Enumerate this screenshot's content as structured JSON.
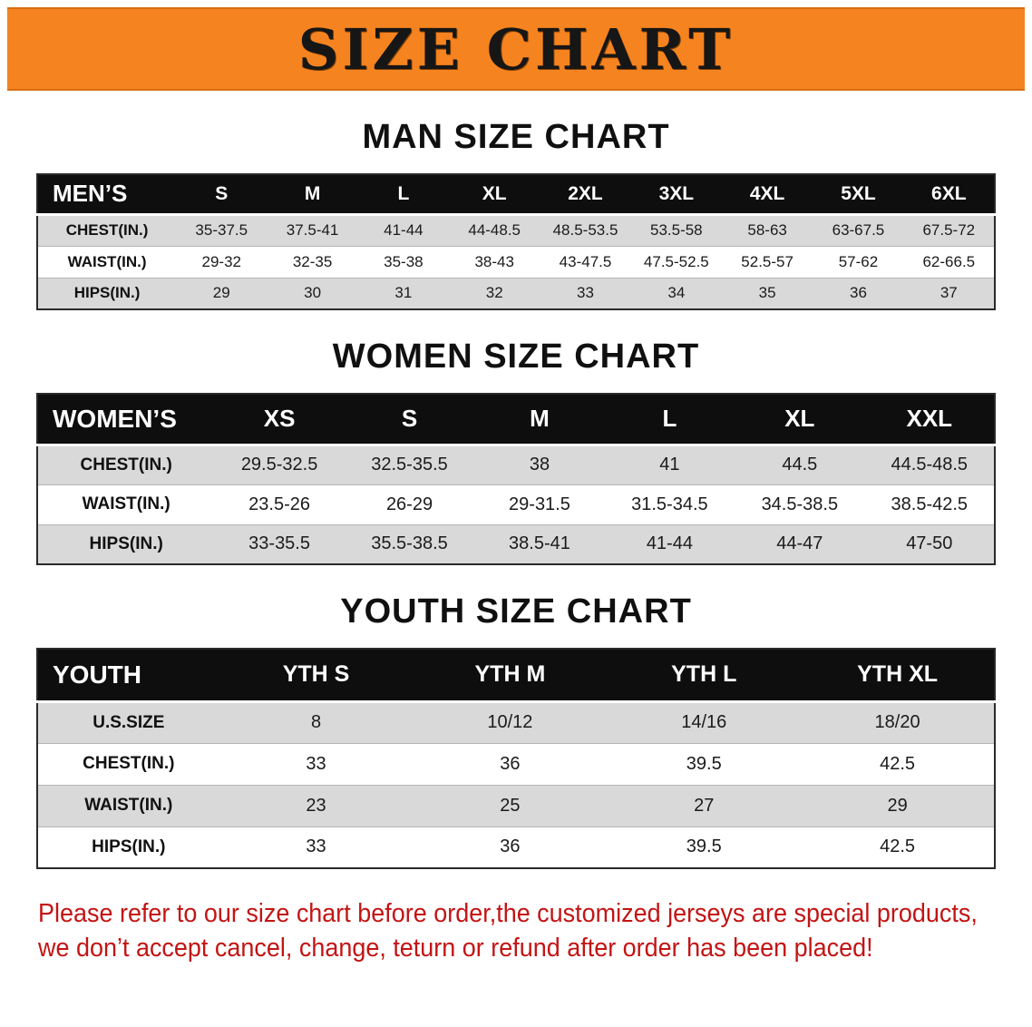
{
  "banner": {
    "title": "SIZE CHART"
  },
  "sections": [
    {
      "heading": "MAN SIZE CHART",
      "header": [
        "MEN’S",
        "S",
        "M",
        "L",
        "XL",
        "2XL",
        "3XL",
        "4XL",
        "5XL",
        "6XL"
      ],
      "rows": [
        {
          "label": "CHEST(IN.)",
          "values": [
            "35-37.5",
            "37.5-41",
            "41-44",
            "44-48.5",
            "48.5-53.5",
            "53.5-58",
            "58-63",
            "63-67.5",
            "67.5-72"
          ]
        },
        {
          "label": "WAIST(IN.)",
          "values": [
            "29-32",
            "32-35",
            "35-38",
            "38-43",
            "43-47.5",
            "47.5-52.5",
            "52.5-57",
            "57-62",
            "62-66.5"
          ]
        },
        {
          "label": "HIPS(IN.)",
          "values": [
            "29",
            "30",
            "31",
            "32",
            "33",
            "34",
            "35",
            "36",
            "37"
          ]
        }
      ]
    },
    {
      "heading": "WOMEN SIZE CHART",
      "header": [
        "WOMEN’S",
        "XS",
        "S",
        "M",
        "L",
        "XL",
        "XXL"
      ],
      "rows": [
        {
          "label": "CHEST(IN.)",
          "values": [
            "29.5-32.5",
            "32.5-35.5",
            "38",
            "41",
            "44.5",
            "44.5-48.5"
          ]
        },
        {
          "label": "WAIST(IN.)",
          "values": [
            "23.5-26",
            "26-29",
            "29-31.5",
            "31.5-34.5",
            "34.5-38.5",
            "38.5-42.5"
          ]
        },
        {
          "label": "HIPS(IN.)",
          "values": [
            "33-35.5",
            "35.5-38.5",
            "38.5-41",
            "41-44",
            "44-47",
            "47-50"
          ]
        }
      ]
    },
    {
      "heading": "YOUTH SIZE CHART",
      "header": [
        "YOUTH",
        "YTH S",
        "YTH M",
        "YTH L",
        "YTH XL"
      ],
      "rows": [
        {
          "label": "U.S.SIZE",
          "values": [
            "8",
            "10/12",
            "14/16",
            "18/20"
          ]
        },
        {
          "label": "CHEST(IN.)",
          "values": [
            "33",
            "36",
            "39.5",
            "42.5"
          ]
        },
        {
          "label": "WAIST(IN.)",
          "values": [
            "23",
            "25",
            "27",
            "29"
          ]
        },
        {
          "label": "HIPS(IN.)",
          "values": [
            "33",
            "36",
            "39.5",
            "42.5"
          ]
        }
      ]
    }
  ],
  "footer": {
    "line1": "Please refer to our size chart before order,the customized jerseys are special products,",
    "line2": "we don’t accept cancel, change, teturn or refund after order has been placed!"
  },
  "colors": {
    "banner_orange": "#f5831f",
    "header_black": "#0e0e0e",
    "row_gray": "#d9d9d9",
    "row_white": "#ffffff",
    "warning_red": "#c31414"
  }
}
